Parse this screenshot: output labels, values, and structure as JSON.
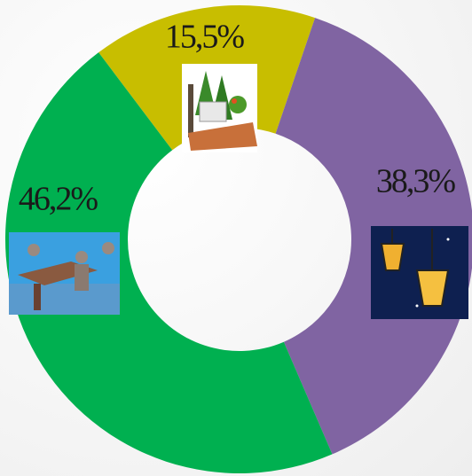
{
  "chart_data": {
    "type": "donut",
    "categories": [
      null,
      null,
      null
    ],
    "series": [
      {
        "values": [
          15.5,
          38.3,
          46.2
        ],
        "value_labels": [
          "15,5%",
          "38,3%",
          "46,2%"
        ],
        "colors": [
          "#c8be00",
          "#8064a2",
          "#00b050"
        ]
      }
    ]
  }
}
